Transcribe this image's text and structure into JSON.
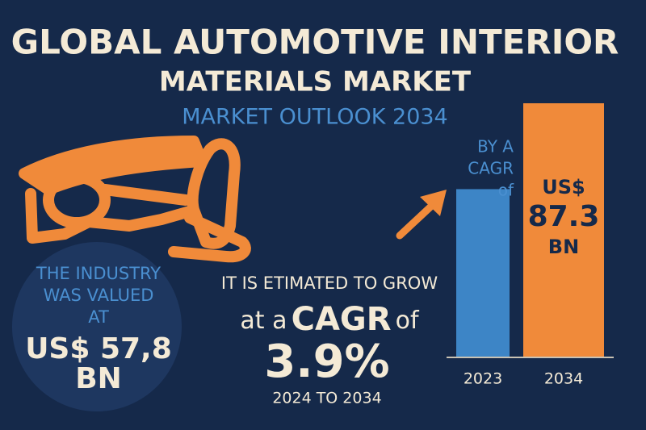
{
  "header": {
    "title": "GLOBAL AUTOMOTIVE INTERIOR",
    "title_line2": "MATERIALS MARKET",
    "subtitle": "MARKET OUTLOOK 2034"
  },
  "left_panel": {
    "lines": [
      "THE INDUSTRY",
      "WAS VALUED",
      "AT"
    ],
    "value_lines": [
      "US$ 57,8",
      "BN"
    ]
  },
  "center": {
    "intro": "IT IS ETIMATED TO GROW",
    "cagr_line": [
      "at a",
      "CAGR",
      "of"
    ],
    "cagr": "3.9%",
    "period": "2024 TO 2034"
  },
  "chart_data": {
    "type": "bar",
    "categories": [
      "2023",
      "2034"
    ],
    "values": [
      57.8,
      87.3
    ],
    "value_labels": [
      null,
      "US$ 87.3 BN"
    ],
    "colors": [
      "#3d85c6",
      "#f08a3a"
    ],
    "annotation": [
      "BY A",
      "CAGR",
      "of"
    ]
  }
}
